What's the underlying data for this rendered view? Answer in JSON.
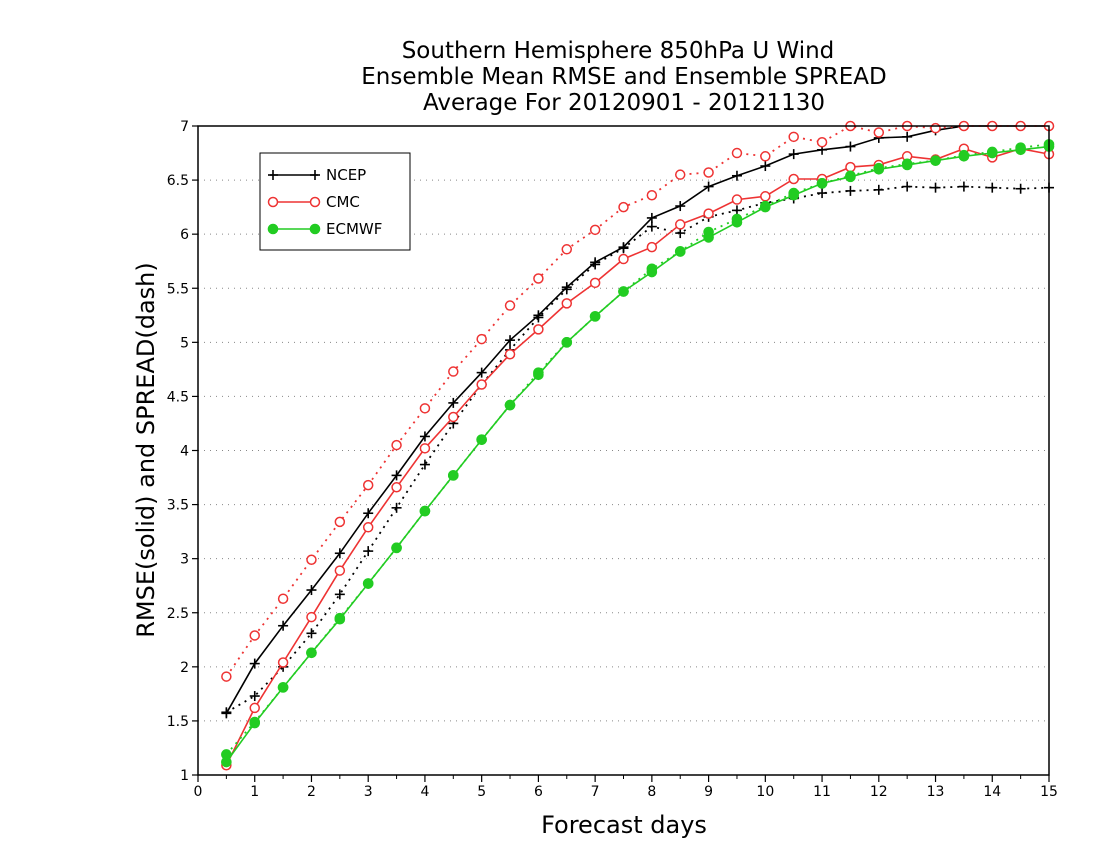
{
  "chart_data": {
    "type": "line",
    "title": [
      "Southern Hemisphere 850hPa U Wind",
      "Ensemble Mean RMSE and Ensemble SPREAD",
      "Average For 20120901 - 20121130"
    ],
    "xlabel": "Forecast days",
    "ylabel": "RMSE(solid) and SPREAD(dash)",
    "xlim": [
      0,
      15
    ],
    "ylim": [
      1,
      7
    ],
    "x_ticks": [
      "0",
      "1",
      "2",
      "3",
      "4",
      "5",
      "6",
      "7",
      "8",
      "9",
      "10",
      "11",
      "12",
      "13",
      "14",
      "15"
    ],
    "y_ticks": [
      "1",
      "1.5",
      "2",
      "2.5",
      "3",
      "3.5",
      "4",
      "4.5",
      "5",
      "5.5",
      "6",
      "6.5",
      "7"
    ],
    "grid": "horizontal dotted",
    "legend_position": "top-left",
    "x": [
      0.5,
      1,
      1.5,
      2,
      2.5,
      3,
      3.5,
      4,
      4.5,
      5,
      5.5,
      6,
      6.5,
      7,
      7.5,
      8,
      8.5,
      9,
      9.5,
      10,
      10.5,
      11,
      11.5,
      12,
      12.5,
      13,
      13.5,
      14,
      14.5,
      15
    ],
    "series": [
      {
        "name": "NCEP",
        "color": "#000000",
        "marker": "plus",
        "rmse": [
          1.57,
          2.03,
          2.38,
          2.71,
          3.05,
          3.42,
          3.77,
          4.13,
          4.44,
          4.72,
          5.02,
          5.25,
          5.51,
          5.74,
          5.88,
          6.15,
          6.26,
          6.44,
          6.54,
          6.63,
          6.74,
          6.78,
          6.81,
          6.89,
          6.9,
          6.96,
          7.0,
          7.0,
          7.0,
          7.0
        ],
        "spread": [
          1.58,
          1.73,
          2.0,
          2.31,
          2.67,
          3.07,
          3.47,
          3.87,
          4.25,
          4.61,
          4.93,
          5.23,
          5.49,
          5.72,
          5.87,
          6.07,
          6.01,
          6.16,
          6.22,
          6.29,
          6.33,
          6.38,
          6.4,
          6.41,
          6.44,
          6.43,
          6.44,
          6.43,
          6.42,
          6.43
        ]
      },
      {
        "name": "CMC",
        "color": "#ee3333",
        "marker": "circle-open",
        "rmse": [
          1.09,
          1.62,
          2.04,
          2.46,
          2.89,
          3.29,
          3.66,
          4.02,
          4.31,
          4.61,
          4.89,
          5.12,
          5.36,
          5.55,
          5.77,
          5.88,
          6.09,
          6.19,
          6.32,
          6.35,
          6.51,
          6.51,
          6.62,
          6.64,
          6.72,
          6.69,
          6.79,
          6.71,
          6.79,
          6.74
        ],
        "spread": [
          1.91,
          2.29,
          2.63,
          2.99,
          3.34,
          3.68,
          4.05,
          4.39,
          4.73,
          5.03,
          5.34,
          5.59,
          5.86,
          6.04,
          6.25,
          6.36,
          6.55,
          6.57,
          6.75,
          6.72,
          6.9,
          6.85,
          7.0,
          6.94,
          7.0,
          6.98,
          7.0,
          7.0,
          7.0,
          7.0
        ]
      },
      {
        "name": "ECMWF",
        "color": "#22cc22",
        "marker": "circle-filled",
        "rmse": [
          1.12,
          1.48,
          1.81,
          2.13,
          2.44,
          2.77,
          3.1,
          3.44,
          3.77,
          4.1,
          4.42,
          4.7,
          5.0,
          5.24,
          5.47,
          5.65,
          5.84,
          5.97,
          6.11,
          6.25,
          6.36,
          6.47,
          6.53,
          6.6,
          6.64,
          6.68,
          6.72,
          6.75,
          6.78,
          6.81
        ],
        "spread": [
          1.19,
          1.49,
          1.81,
          2.13,
          2.45,
          2.77,
          3.1,
          3.44,
          3.77,
          4.1,
          4.42,
          4.72,
          5.0,
          5.24,
          5.47,
          5.68,
          5.84,
          6.02,
          6.14,
          6.26,
          6.38,
          6.47,
          6.54,
          6.61,
          6.65,
          6.68,
          6.73,
          6.76,
          6.8,
          6.83
        ]
      }
    ]
  }
}
